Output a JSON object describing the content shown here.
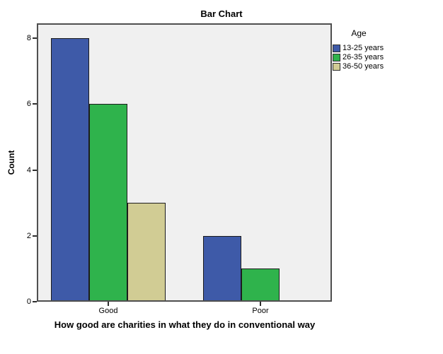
{
  "chart_data": {
    "type": "bar",
    "title": "Bar Chart",
    "xlabel": "How good are charities in what they do in conventional way",
    "ylabel": "Count",
    "categories": [
      "Good",
      "Poor"
    ],
    "series": [
      {
        "name": "13-25 years",
        "color": "#3E5AA8",
        "values": [
          8,
          2
        ]
      },
      {
        "name": "26-35 years",
        "color": "#2FB34C",
        "values": [
          6,
          1
        ]
      },
      {
        "name": "36-50 years",
        "color": "#D1CC94",
        "values": [
          3,
          0
        ]
      }
    ],
    "ylim": [
      0,
      8
    ],
    "yticks": [
      0,
      2,
      4,
      6,
      8
    ],
    "legend_title": "Age",
    "legend_position": "right",
    "grid": false,
    "plot_background": "#F0F0F0",
    "frame_color": "#4f4f4f",
    "bar_border_color": "#1c1c1c"
  }
}
